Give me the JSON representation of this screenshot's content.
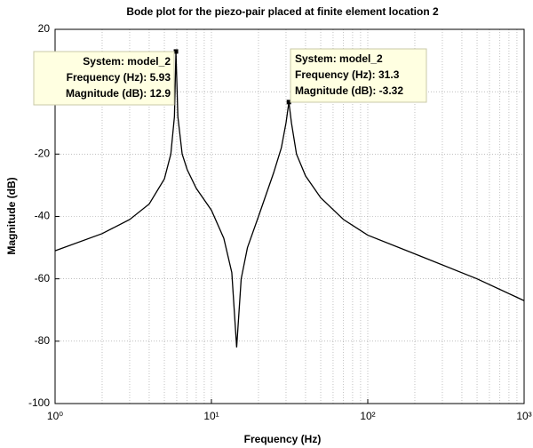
{
  "chart_data": {
    "type": "line",
    "title": "Bode plot for the piezo-pair placed at finite element location 2",
    "xlabel": "Frequency  (Hz)",
    "ylabel": "Magnitude (dB)",
    "xscale": "log",
    "grid": true,
    "xlim": [
      1,
      1000
    ],
    "xticks": [
      {
        "value": 1,
        "label": "10⁰"
      },
      {
        "value": 10,
        "label": "10¹"
      },
      {
        "value": 100,
        "label": "10²"
      },
      {
        "value": 1000,
        "label": "10³"
      }
    ],
    "ylim": [
      -100,
      20
    ],
    "yticks": [
      -100,
      -80,
      -60,
      -40,
      -20,
      0,
      20
    ],
    "x": [
      1,
      2,
      3,
      4,
      5,
      5.5,
      5.8,
      5.93,
      6.1,
      6.5,
      7,
      8,
      10,
      12,
      13.5,
      14.5,
      15.5,
      17,
      20,
      25,
      28,
      30,
      31.3,
      32.5,
      35,
      40,
      50,
      70,
      100,
      200,
      500,
      1000
    ],
    "series": [
      {
        "name": "model_2",
        "color": "#000000",
        "values": [
          -51,
          -45.5,
          -41,
          -36,
          -28,
          -20,
          -8,
          12.9,
          -8,
          -20,
          -25,
          -31,
          -38,
          -47,
          -58,
          -82,
          -60,
          -50,
          -40,
          -26,
          -18,
          -10,
          -3.32,
          -10,
          -20,
          -27,
          -34,
          -41,
          -46,
          -52,
          -60,
          -67
        ]
      }
    ],
    "annotations": [
      {
        "text": [
          "System: model_2",
          "Frequency (Hz): 5.93",
          "Magnitude (dB): 12.9"
        ]
      },
      {
        "text": [
          "System: model_2",
          "Frequency (Hz): 31.3",
          "Magnitude (dB): -3.32"
        ]
      }
    ]
  }
}
